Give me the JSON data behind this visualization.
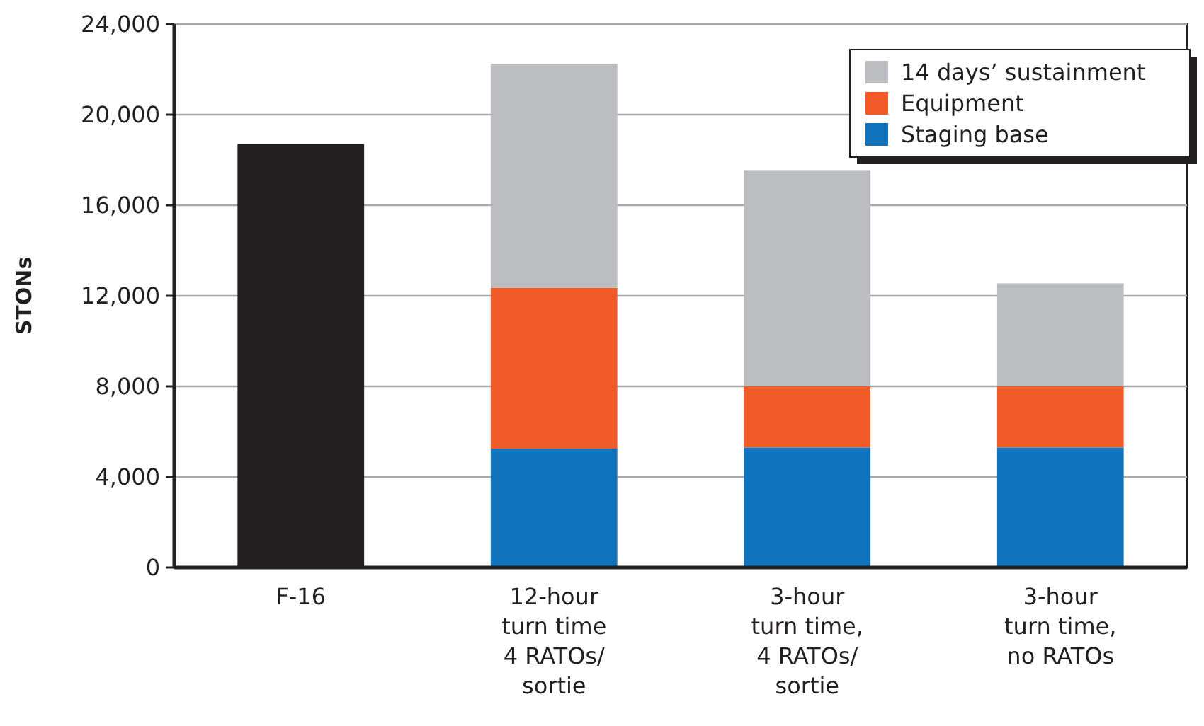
{
  "chart_data": {
    "type": "bar",
    "stacked": true,
    "ylabel": "STONs",
    "categories": [
      "F-16",
      "12-hour\nturn time\n4 RATOs/\nsortie",
      "3-hour\nturn time,\n4 RATOs/\nsortie",
      "3-hour\nturn time,\nno RATOs"
    ],
    "series": [
      {
        "color": "#231f20",
        "values": [
          18700,
          null,
          null,
          null
        ]
      },
      {
        "name": "Staging base",
        "color": "#1073bc",
        "values": [
          null,
          5250,
          5300,
          5300
        ]
      },
      {
        "name": "Equipment",
        "color": "#f15a29",
        "values": [
          null,
          7100,
          2700,
          2700
        ]
      },
      {
        "name": "14 days’ sustainment",
        "color": "#bcbdc0",
        "values": [
          null,
          9900,
          9550,
          4550
        ]
      }
    ],
    "ylim": [
      0,
      24000
    ],
    "yticks": [
      {
        "value": 0,
        "label": "0"
      },
      {
        "value": 4000,
        "label": "4,000"
      },
      {
        "value": 8000,
        "label": "8,000"
      },
      {
        "value": 12000,
        "label": "12,000"
      },
      {
        "value": 16000,
        "label": "16,000"
      },
      {
        "value": 20000,
        "label": "20,000"
      },
      {
        "value": 24000,
        "label": "24,000"
      }
    ],
    "grid": "y",
    "legend": "top right"
  }
}
